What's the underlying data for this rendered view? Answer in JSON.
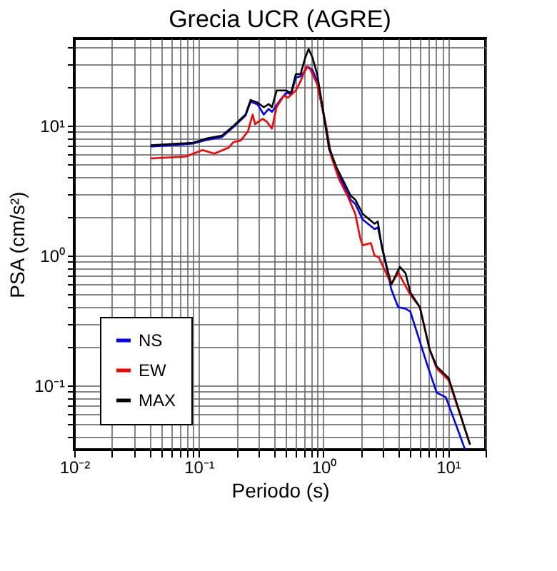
{
  "chart_data": {
    "type": "line",
    "title": "Grecia UCR (AGRE)",
    "xlabel": "Periodo (s)",
    "ylabel": "PSA (cm/s²)",
    "log": "xy",
    "grid": true,
    "legend": "bottom left",
    "line_style": "solid",
    "marker": "none",
    "xlim": [
      0.01,
      20
    ],
    "ylim": [
      0.032,
      47
    ],
    "xticks": [
      {
        "value": 0.01,
        "label": "10⁻²"
      },
      {
        "value": 0.02,
        "label": null
      },
      {
        "value": 0.03,
        "label": null
      },
      {
        "value": 0.04,
        "label": null
      },
      {
        "value": 0.05,
        "label": null
      },
      {
        "value": 0.06,
        "label": null
      },
      {
        "value": 0.07,
        "label": null
      },
      {
        "value": 0.08,
        "label": null
      },
      {
        "value": 0.09,
        "label": null
      },
      {
        "value": 0.1,
        "label": "10⁻¹"
      },
      {
        "value": 0.2,
        "label": null
      },
      {
        "value": 0.3,
        "label": null
      },
      {
        "value": 0.4,
        "label": null
      },
      {
        "value": 0.5,
        "label": null
      },
      {
        "value": 0.6,
        "label": null
      },
      {
        "value": 0.7,
        "label": null
      },
      {
        "value": 0.8,
        "label": null
      },
      {
        "value": 0.9,
        "label": null
      },
      {
        "value": 1,
        "label": "10⁰"
      },
      {
        "value": 2,
        "label": null
      },
      {
        "value": 3,
        "label": null
      },
      {
        "value": 4,
        "label": null
      },
      {
        "value": 5,
        "label": null
      },
      {
        "value": 6,
        "label": null
      },
      {
        "value": 7,
        "label": null
      },
      {
        "value": 8,
        "label": null
      },
      {
        "value": 9,
        "label": null
      },
      {
        "value": 10,
        "label": "10¹"
      },
      {
        "value": 20,
        "label": null
      }
    ],
    "yticks": [
      {
        "value": 0.04,
        "label": null
      },
      {
        "value": 0.05,
        "label": null
      },
      {
        "value": 0.06,
        "label": null
      },
      {
        "value": 0.07,
        "label": null
      },
      {
        "value": 0.08,
        "label": null
      },
      {
        "value": 0.09,
        "label": null
      },
      {
        "value": 0.1,
        "label": "10⁻¹"
      },
      {
        "value": 0.2,
        "label": null
      },
      {
        "value": 0.3,
        "label": null
      },
      {
        "value": 0.4,
        "label": null
      },
      {
        "value": 0.5,
        "label": null
      },
      {
        "value": 0.6,
        "label": null
      },
      {
        "value": 0.7,
        "label": null
      },
      {
        "value": 0.8,
        "label": null
      },
      {
        "value": 0.9,
        "label": null
      },
      {
        "value": 1,
        "label": "10⁰"
      },
      {
        "value": 2,
        "label": null
      },
      {
        "value": 3,
        "label": null
      },
      {
        "value": 4,
        "label": null
      },
      {
        "value": 5,
        "label": null
      },
      {
        "value": 6,
        "label": null
      },
      {
        "value": 7,
        "label": null
      },
      {
        "value": 8,
        "label": null
      },
      {
        "value": 9,
        "label": null
      },
      {
        "value": 10,
        "label": "10¹"
      },
      {
        "value": 20,
        "label": null
      },
      {
        "value": 30,
        "label": null
      },
      {
        "value": 40,
        "label": null
      }
    ],
    "series": [
      {
        "name": "NS",
        "color": "#0000ff",
        "x": [
          0.041,
          0.09,
          0.117,
          0.153,
          0.19,
          0.237,
          0.26,
          0.296,
          0.332,
          0.363,
          0.386,
          0.45,
          0.503,
          0.55,
          0.6,
          0.655,
          0.75,
          0.815,
          0.89,
          1.02,
          1.11,
          1.27,
          1.51,
          1.65,
          1.8,
          2.06,
          2.57,
          2.73,
          2.94,
          3.5,
          3.98,
          4.56,
          4.98,
          6.76,
          8.1,
          9.6,
          13.7
        ],
        "values": [
          6.9,
          7.3,
          7.8,
          8.2,
          9.8,
          12.0,
          15.3,
          14.6,
          12.2,
          13.5,
          12.8,
          15.8,
          18.0,
          17.5,
          23.5,
          24.0,
          28.5,
          27.0,
          22.0,
          11.0,
          6.6,
          4.6,
          3.2,
          2.7,
          2.5,
          1.9,
          1.6,
          1.65,
          1.2,
          0.55,
          0.4,
          0.39,
          0.37,
          0.147,
          0.088,
          0.081,
          0.032
        ]
      },
      {
        "name": "EW",
        "color": "#ff0000",
        "x": [
          0.041,
          0.079,
          0.107,
          0.133,
          0.174,
          0.19,
          0.217,
          0.248,
          0.27,
          0.283,
          0.324,
          0.35,
          0.386,
          0.42,
          0.48,
          0.52,
          0.6,
          0.655,
          0.73,
          0.78,
          0.89,
          1.05,
          1.16,
          1.33,
          1.58,
          1.8,
          1.97,
          2.06,
          2.4,
          2.57,
          2.78,
          3.5,
          3.98,
          4.98,
          5.94,
          7.1,
          8.1,
          10.1,
          15
        ],
        "values": [
          5.6,
          5.8,
          6.5,
          6.1,
          6.8,
          7.5,
          7.7,
          9.1,
          12.2,
          10.3,
          11.3,
          10.8,
          9.5,
          13.9,
          17.0,
          16.5,
          18.7,
          22.0,
          28.5,
          27.5,
          21.0,
          10.0,
          5.7,
          3.9,
          2.8,
          2.1,
          1.37,
          1.2,
          1.25,
          1.0,
          0.97,
          0.6,
          0.74,
          0.5,
          0.4,
          0.19,
          0.135,
          0.11,
          0.035
        ]
      },
      {
        "name": "MAX",
        "color": "#000000",
        "x": [
          0.041,
          0.09,
          0.117,
          0.153,
          0.19,
          0.237,
          0.26,
          0.296,
          0.332,
          0.363,
          0.386,
          0.421,
          0.503,
          0.55,
          0.6,
          0.655,
          0.715,
          0.76,
          0.815,
          0.89,
          1.02,
          1.11,
          1.27,
          1.51,
          1.65,
          1.8,
          2.06,
          2.57,
          2.73,
          2.94,
          3.5,
          4.1,
          4.56,
          4.98,
          5.94,
          7.1,
          8.1,
          10.1,
          15
        ],
        "values": [
          7.07,
          7.4,
          8.0,
          8.4,
          10.0,
          12.2,
          15.8,
          15.1,
          13.9,
          14.7,
          13.9,
          18.7,
          18.7,
          17.9,
          25.0,
          25.0,
          33.7,
          39.0,
          33.7,
          25.0,
          11.3,
          6.8,
          4.8,
          3.45,
          2.9,
          2.7,
          2.1,
          1.76,
          1.83,
          1.16,
          0.6,
          0.82,
          0.73,
          0.52,
          0.4,
          0.19,
          0.14,
          0.114,
          0.035
        ]
      }
    ]
  }
}
